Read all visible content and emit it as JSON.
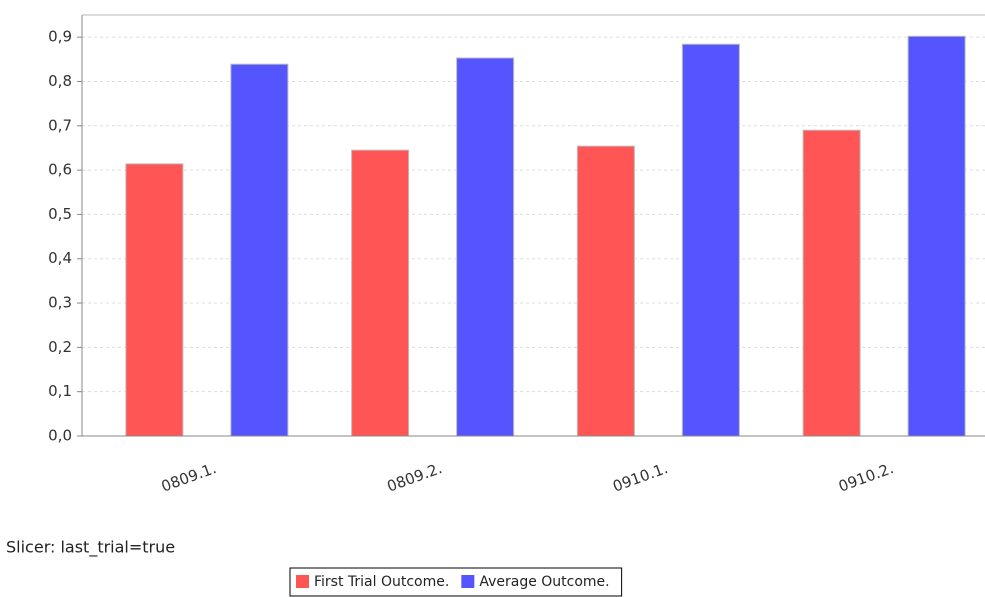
{
  "chart_data": {
    "type": "bar",
    "caption": "Slicer: last_trial=true",
    "categories": [
      "0809.1.",
      "0809.2.",
      "0910.1.",
      "0910.2."
    ],
    "series": [
      {
        "name": "First Trial Outcome.",
        "color": "#ff5555",
        "values": [
          0.614,
          0.645,
          0.654,
          0.69
        ]
      },
      {
        "name": "Average Outcome.",
        "color": "#5555ff",
        "values": [
          0.839,
          0.853,
          0.884,
          0.902
        ]
      }
    ],
    "ylim": [
      0,
      0.95
    ],
    "yticks": [
      {
        "value": 0,
        "label": "0,0"
      },
      {
        "value": 0.1,
        "label": "0,1"
      },
      {
        "value": 0.2,
        "label": "0,2"
      },
      {
        "value": 0.3,
        "label": "0,3"
      },
      {
        "value": 0.4,
        "label": "0,4"
      },
      {
        "value": 0.5,
        "label": "0,5"
      },
      {
        "value": 0.6,
        "label": "0,6"
      },
      {
        "value": 0.7,
        "label": "0,7"
      },
      {
        "value": 0.8,
        "label": "0,8"
      },
      {
        "value": 0.9,
        "label": "0,9"
      }
    ],
    "grid": true
  }
}
